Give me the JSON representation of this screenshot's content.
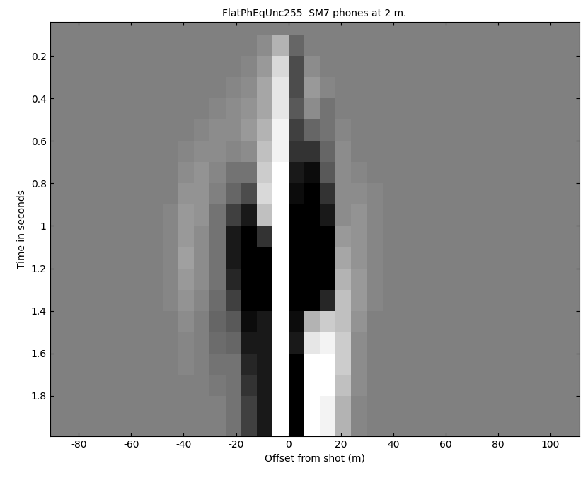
{
  "chart_data": {
    "type": "heatmap",
    "title": "FlatPhEqUnc255  SM7 phones at 2 m.",
    "x_label": "Offset from shot (m)",
    "y_label": "Time in seconds",
    "xlim": [
      -91,
      111
    ],
    "ylim": [
      1.99,
      0.04
    ],
    "xticks": [
      -80,
      -60,
      -40,
      -20,
      0,
      20,
      40,
      60,
      80,
      100
    ],
    "yticks": [
      0.2,
      0.4,
      0.6,
      0.8,
      1,
      1.2,
      1.4,
      1.6,
      1.8
    ],
    "color": "gray",
    "clim": [
      -1,
      1
    ],
    "x_edges": [
      -91,
      -48,
      -42,
      -36,
      -30,
      -24,
      -18,
      -12,
      -6,
      0,
      6,
      12,
      18,
      24,
      30,
      36,
      42,
      48,
      111
    ],
    "y_edges": [
      0.0,
      0.1,
      0.2,
      0.3,
      0.4,
      0.5,
      0.6,
      0.7,
      0.8,
      0.9,
      1.0,
      1.1,
      1.2,
      1.3,
      1.4,
      1.5,
      1.6,
      1.7,
      1.8,
      1.9,
      2.0
    ],
    "cells": [
      [
        0,
        0,
        0,
        0,
        0,
        0,
        0,
        0,
        0,
        0,
        0,
        0,
        0,
        0,
        0,
        0,
        0,
        0
      ],
      [
        0,
        0,
        0,
        0,
        0,
        0,
        0,
        0.1,
        0.4,
        -0.2,
        0,
        0,
        0,
        0,
        0,
        0,
        0,
        0
      ],
      [
        0,
        0,
        0,
        0,
        0,
        0,
        0.05,
        0.2,
        0.7,
        -0.4,
        0.1,
        0,
        0,
        0,
        0,
        0,
        0,
        0
      ],
      [
        0,
        0,
        0,
        0,
        0,
        0.05,
        0.1,
        0.3,
        0.8,
        -0.4,
        0.2,
        0.05,
        0,
        0,
        0,
        0,
        0,
        0
      ],
      [
        0,
        0,
        0,
        0,
        0.05,
        0.1,
        0.15,
        0.3,
        0.8,
        -0.3,
        0.1,
        -0.1,
        0,
        0,
        0,
        0,
        0,
        0
      ],
      [
        0,
        0,
        0,
        0.05,
        0.1,
        0.1,
        0.2,
        0.4,
        0.9,
        -0.5,
        -0.2,
        -0.1,
        0.05,
        0,
        0,
        0,
        0,
        0
      ],
      [
        0,
        0,
        0.05,
        0.1,
        0.1,
        0.05,
        0.1,
        0.5,
        0.9,
        -0.6,
        -0.6,
        -0.2,
        0.1,
        0,
        0,
        0,
        0,
        0
      ],
      [
        0,
        0,
        0.1,
        0.15,
        0.05,
        -0.1,
        -0.1,
        0.6,
        1,
        -0.8,
        -0.9,
        -0.3,
        0.1,
        0.05,
        0,
        0,
        0,
        0
      ],
      [
        0,
        0,
        0.15,
        0.15,
        0,
        -0.2,
        -0.4,
        0.7,
        1,
        -0.9,
        -1,
        -0.6,
        0.1,
        0.1,
        0.05,
        0,
        0,
        0
      ],
      [
        0,
        0.05,
        0.2,
        0.15,
        -0.1,
        -0.5,
        -0.8,
        0.5,
        1,
        -1,
        -1,
        -0.8,
        0.1,
        0.15,
        0.05,
        0,
        0,
        0
      ],
      [
        0,
        0.05,
        0.2,
        0.1,
        -0.1,
        -0.8,
        -1,
        -0.6,
        1,
        -1,
        -1,
        -1,
        0.2,
        0.15,
        0.05,
        0,
        0,
        0
      ],
      [
        0,
        0.05,
        0.25,
        0.1,
        -0.1,
        -0.8,
        -1,
        -1,
        1,
        -1,
        -1,
        -1,
        0.3,
        0.15,
        0.05,
        0,
        0,
        0
      ],
      [
        0,
        0.05,
        0.2,
        0.1,
        -0.1,
        -0.7,
        -1,
        -1,
        1,
        -1,
        -1,
        -1,
        0.4,
        0.2,
        0.05,
        0,
        0,
        0
      ],
      [
        0,
        0.05,
        0.15,
        0.05,
        -0.15,
        -0.5,
        -1,
        -1,
        1,
        -1,
        -1,
        -0.7,
        0.5,
        0.2,
        0.05,
        0,
        0,
        0
      ],
      [
        0,
        0,
        0.1,
        0,
        -0.2,
        -0.3,
        -0.9,
        -0.8,
        1,
        -0.9,
        0.4,
        0.6,
        0.5,
        0.15,
        0,
        0,
        0,
        0
      ],
      [
        0,
        0,
        0.05,
        0,
        -0.15,
        -0.2,
        -0.8,
        -0.8,
        1,
        -0.8,
        0.8,
        0.9,
        0.6,
        0.1,
        0,
        0,
        0,
        0
      ],
      [
        0,
        0,
        0.05,
        0,
        -0.1,
        -0.1,
        -0.7,
        -0.8,
        1,
        -1,
        1,
        1,
        0.6,
        0.1,
        0,
        0,
        0,
        0
      ],
      [
        0,
        0,
        0,
        0,
        -0.05,
        -0.1,
        -0.6,
        -0.8,
        1,
        -1,
        1,
        1,
        0.5,
        0.1,
        0,
        0,
        0,
        0
      ],
      [
        0,
        0,
        0,
        0,
        0,
        -0.1,
        -0.5,
        -0.8,
        1,
        -1,
        1,
        0.9,
        0.4,
        0.05,
        0,
        0,
        0,
        0
      ],
      [
        0,
        0,
        0,
        0,
        0,
        -0.1,
        -0.5,
        -0.8,
        1,
        -1,
        1,
        0.9,
        0.4,
        0.05,
        0,
        0,
        0,
        0
      ]
    ]
  }
}
